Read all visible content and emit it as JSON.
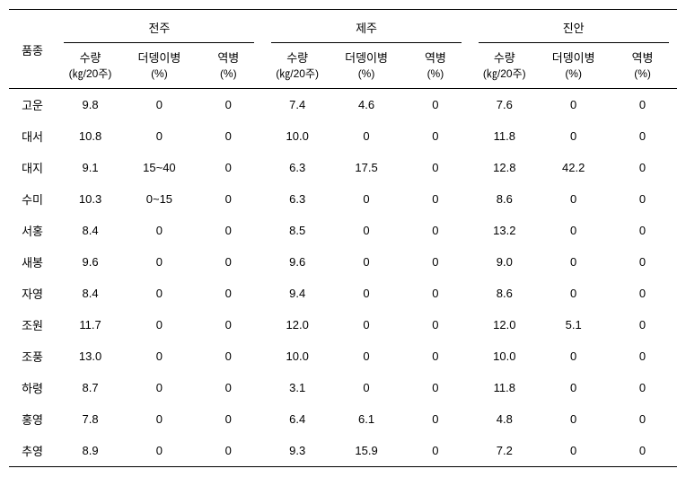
{
  "headers": {
    "variety": "품종",
    "regions": [
      "전주",
      "제주",
      "진안"
    ],
    "metrics": {
      "yield": "수량",
      "yield_unit": "(㎏/20주)",
      "disease1": "더뎅이병",
      "disease1_unit": "(%)",
      "disease2": "역병",
      "disease2_unit": "(%)"
    }
  },
  "rows": [
    {
      "variety": "고운",
      "r1": {
        "yield": "9.8",
        "d1": "0",
        "d2": "0"
      },
      "r2": {
        "yield": "7.4",
        "d1": "4.6",
        "d2": "0"
      },
      "r3": {
        "yield": "7.6",
        "d1": "0",
        "d2": "0"
      }
    },
    {
      "variety": "대서",
      "r1": {
        "yield": "10.8",
        "d1": "0",
        "d2": "0"
      },
      "r2": {
        "yield": "10.0",
        "d1": "0",
        "d2": "0"
      },
      "r3": {
        "yield": "11.8",
        "d1": "0",
        "d2": "0"
      }
    },
    {
      "variety": "대지",
      "r1": {
        "yield": "9.1",
        "d1": "15~40",
        "d2": "0"
      },
      "r2": {
        "yield": "6.3",
        "d1": "17.5",
        "d2": "0"
      },
      "r3": {
        "yield": "12.8",
        "d1": "42.2",
        "d2": "0"
      }
    },
    {
      "variety": "수미",
      "r1": {
        "yield": "10.3",
        "d1": "0~15",
        "d2": "0"
      },
      "r2": {
        "yield": "6.3",
        "d1": "0",
        "d2": "0"
      },
      "r3": {
        "yield": "8.6",
        "d1": "0",
        "d2": "0"
      }
    },
    {
      "variety": "서홍",
      "r1": {
        "yield": "8.4",
        "d1": "0",
        "d2": "0"
      },
      "r2": {
        "yield": "8.5",
        "d1": "0",
        "d2": "0"
      },
      "r3": {
        "yield": "13.2",
        "d1": "0",
        "d2": "0"
      }
    },
    {
      "variety": "새봉",
      "r1": {
        "yield": "9.6",
        "d1": "0",
        "d2": "0"
      },
      "r2": {
        "yield": "9.6",
        "d1": "0",
        "d2": "0"
      },
      "r3": {
        "yield": "9.0",
        "d1": "0",
        "d2": "0"
      }
    },
    {
      "variety": "자영",
      "r1": {
        "yield": "8.4",
        "d1": "0",
        "d2": "0"
      },
      "r2": {
        "yield": "9.4",
        "d1": "0",
        "d2": "0"
      },
      "r3": {
        "yield": "8.6",
        "d1": "0",
        "d2": "0"
      }
    },
    {
      "variety": "조원",
      "r1": {
        "yield": "11.7",
        "d1": "0",
        "d2": "0"
      },
      "r2": {
        "yield": "12.0",
        "d1": "0",
        "d2": "0"
      },
      "r3": {
        "yield": "12.0",
        "d1": "5.1",
        "d2": "0"
      }
    },
    {
      "variety": "조풍",
      "r1": {
        "yield": "13.0",
        "d1": "0",
        "d2": "0"
      },
      "r2": {
        "yield": "10.0",
        "d1": "0",
        "d2": "0"
      },
      "r3": {
        "yield": "10.0",
        "d1": "0",
        "d2": "0"
      }
    },
    {
      "variety": "하령",
      "r1": {
        "yield": "8.7",
        "d1": "0",
        "d2": "0"
      },
      "r2": {
        "yield": "3.1",
        "d1": "0",
        "d2": "0"
      },
      "r3": {
        "yield": "11.8",
        "d1": "0",
        "d2": "0"
      }
    },
    {
      "variety": "홍영",
      "r1": {
        "yield": "7.8",
        "d1": "0",
        "d2": "0"
      },
      "r2": {
        "yield": "6.4",
        "d1": "6.1",
        "d2": "0"
      },
      "r3": {
        "yield": "4.8",
        "d1": "0",
        "d2": "0"
      }
    },
    {
      "variety": "추영",
      "r1": {
        "yield": "8.9",
        "d1": "0",
        "d2": "0"
      },
      "r2": {
        "yield": "9.3",
        "d1": "15.9",
        "d2": "0"
      },
      "r3": {
        "yield": "7.2",
        "d1": "0",
        "d2": "0"
      }
    }
  ],
  "styles": {
    "font_size": 13,
    "border_color": "#000000",
    "background_color": "#ffffff",
    "text_color": "#000000",
    "col_widths": {
      "variety_pct": 7,
      "data_pct": 10.33
    }
  }
}
